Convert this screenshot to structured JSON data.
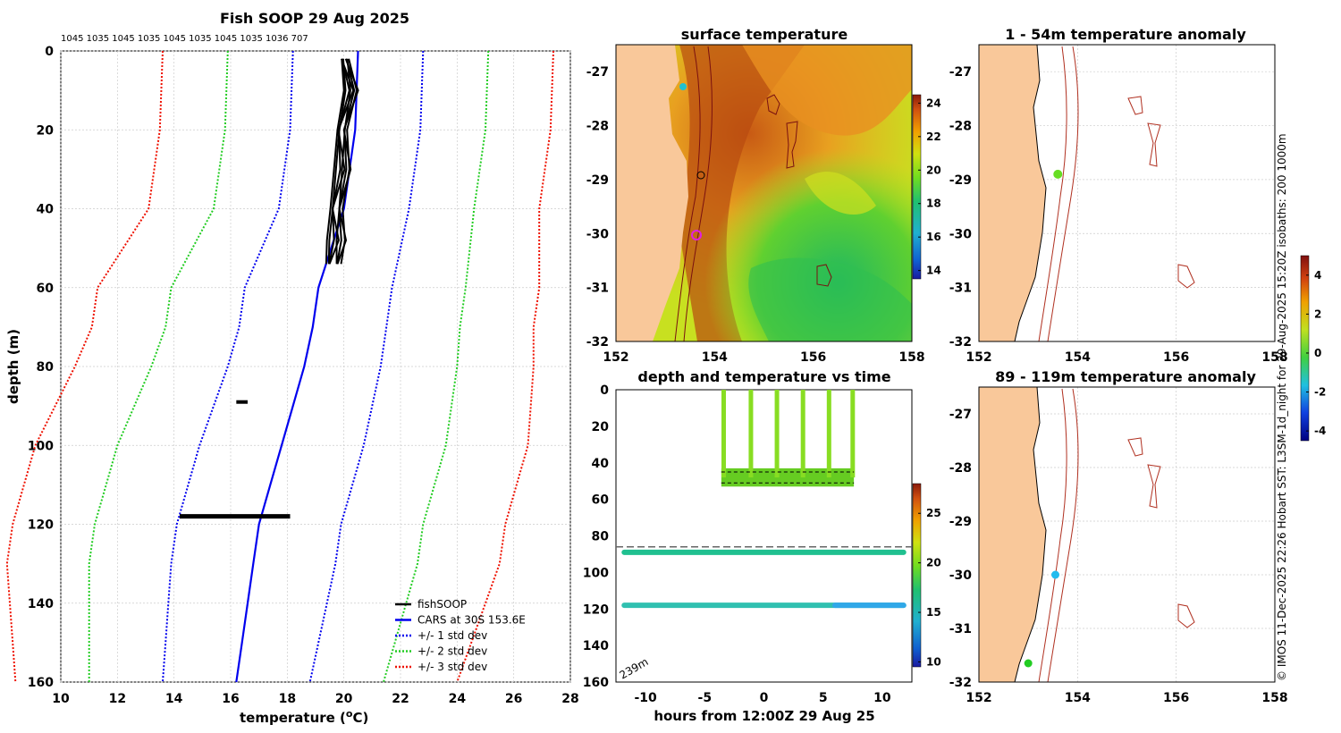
{
  "chart_data": [
    {
      "type": "line",
      "id": "profile",
      "title": "Fish SOOP 29 Aug 2025",
      "top_counts": "1045 1035 1045 1035 1045 1035 1045 1035 1036 707",
      "xlabel": "temperature (",
      "xlabel_sup": "o",
      "xlabel_end": "C)",
      "ylabel": "depth (m)",
      "xlim": [
        10,
        28
      ],
      "ylim": [
        0,
        160
      ],
      "xticks": [
        10,
        12,
        14,
        16,
        18,
        20,
        22,
        24,
        26,
        28
      ],
      "yticks": [
        0,
        20,
        40,
        60,
        80,
        100,
        120,
        140,
        160
      ],
      "depths": [
        0,
        20,
        40,
        60,
        70,
        80,
        90,
        100,
        110,
        120,
        130,
        140,
        150,
        160
      ],
      "cars_mean": [
        20.5,
        20.4,
        20.0,
        19.1,
        18.9,
        18.6,
        18.2,
        17.8,
        17.4,
        17.0,
        16.8,
        16.6,
        16.4,
        16.2
      ],
      "std1": [
        2.3,
        2.3,
        2.3,
        2.6,
        2.6,
        2.7,
        2.8,
        2.9,
        2.9,
        2.9,
        2.9,
        2.8,
        2.7,
        2.6
      ],
      "series": [
        {
          "name": "fishSOOP",
          "color": "#000000",
          "style": "solid"
        },
        {
          "name": "CARS at 30S 153.6E",
          "color": "#0000ee",
          "style": "solid"
        },
        {
          "name": "+/- 1 std dev",
          "color": "#0000ee",
          "style": "dotted"
        },
        {
          "name": "+/- 2 std dev",
          "color": "#22cc22",
          "style": "dotted"
        },
        {
          "name": "+/- 3 std dev",
          "color": "#ee1100",
          "style": "dotted"
        }
      ],
      "fishsoop_upper": {
        "depth": [
          2,
          10,
          20,
          30,
          40,
          48,
          54
        ],
        "temp": [
          20.1,
          20.2,
          20.0,
          19.9,
          19.8,
          19.7,
          19.7
        ]
      },
      "fishsoop_mid": {
        "depth": 89,
        "temp": 16.4
      },
      "fishsoop_lower": {
        "depth": 118,
        "tmin": 14.2,
        "tmax": 18.1
      },
      "legend_position": "bottom-right"
    },
    {
      "type": "heatmap",
      "id": "sst",
      "title": "surface temperature",
      "xlim": [
        152,
        158
      ],
      "ylim": [
        -32,
        -26.5
      ],
      "xticks": [
        152,
        154,
        156,
        158
      ],
      "yticks": [
        -27,
        -28,
        -29,
        -30,
        -31,
        -32
      ],
      "colorbar_ticks": [
        14,
        16,
        18,
        20,
        22,
        24
      ],
      "colorbar_range": [
        13.5,
        24.5
      ]
    },
    {
      "type": "scatter",
      "id": "anom_top",
      "title": "1 - 54m temperature anomaly",
      "xlim": [
        152,
        158
      ],
      "ylim": [
        -32,
        -26.5
      ],
      "xticks": [
        152,
        154,
        156,
        158
      ],
      "yticks": [
        -27,
        -28,
        -29,
        -30,
        -31,
        -32
      ],
      "points": [
        {
          "lon": 153.6,
          "lat": -28.9,
          "color": "#66dd22"
        }
      ]
    },
    {
      "type": "scatter",
      "id": "depth_time",
      "title": "depth and temperature vs time",
      "xlabel": "hours from 12:00Z 29 Aug 25",
      "xlim": [
        -12.5,
        12.5
      ],
      "ylim": [
        0,
        160
      ],
      "xticks": [
        -10,
        -5,
        0,
        5,
        10
      ],
      "yticks": [
        0,
        20,
        40,
        60,
        80,
        100,
        120,
        140,
        160
      ],
      "bottom_depth_label": "239m",
      "dashed_line_depth": 86,
      "colorbar_ticks": [
        10,
        15,
        20,
        25
      ],
      "colorbar_range": [
        9.5,
        28
      ]
    },
    {
      "type": "scatter",
      "id": "anom_bottom",
      "title": "89 - 119m temperature anomaly",
      "xlim": [
        152,
        158
      ],
      "ylim": [
        -32,
        -26.5
      ],
      "xticks": [
        152,
        154,
        156,
        158
      ],
      "yticks": [
        -27,
        -28,
        -29,
        -30,
        -31,
        -32
      ],
      "points": [
        {
          "lon": 153.55,
          "lat": -30.0,
          "color": "#22bbee"
        },
        {
          "lon": 153.0,
          "lat": -31.65,
          "color": "#22cc22"
        }
      ],
      "colorbar_ticks": [
        -4,
        -2,
        0,
        2,
        4
      ],
      "colorbar_range": [
        -4.5,
        5
      ]
    }
  ],
  "credit": "© IMOS 11-Dec-2025 22:26 Hobart SST: L3SM-1d_night for 29-Aug-2025 15:20Z isobaths: 200  1000m"
}
